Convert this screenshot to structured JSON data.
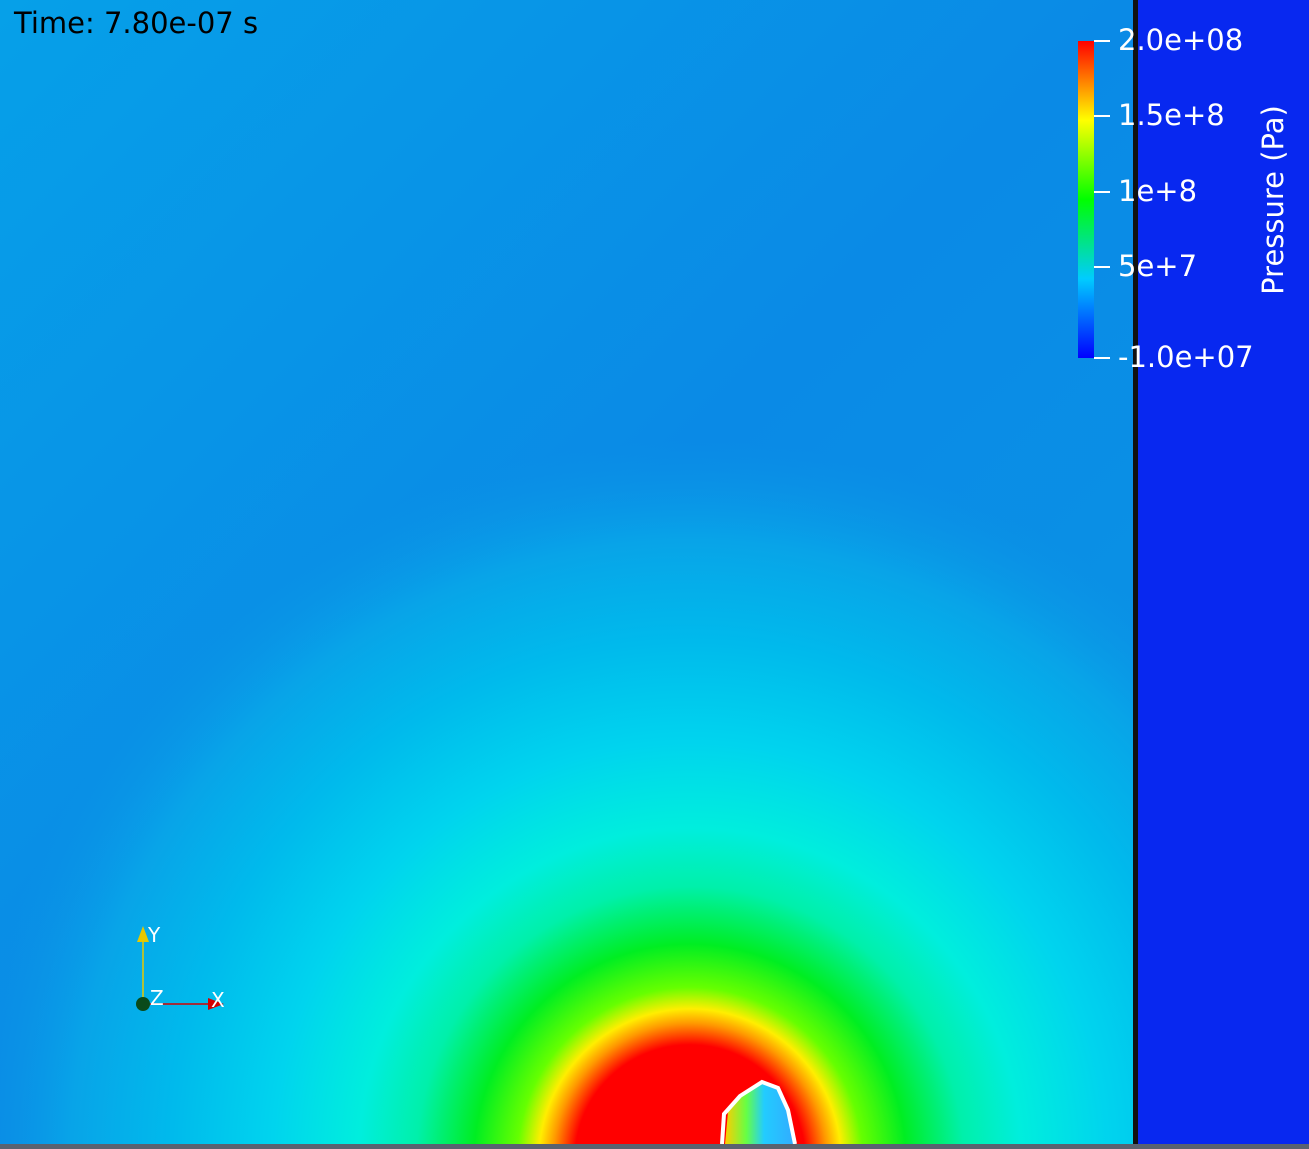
{
  "time_label": "Time: 7.80e-07 s",
  "colorbar": {
    "title": "Pressure (Pa)",
    "ticks": [
      {
        "label": "2.0e+08",
        "value": 200000000
      },
      {
        "label": "1.5e+8",
        "value": 150000000
      },
      {
        "label": "1e+8",
        "value": 100000000
      },
      {
        "label": "5e+7",
        "value": 50000000
      },
      {
        "label": "-1.0e+07",
        "value": -10000000
      }
    ],
    "range": [
      -10000000,
      200000000
    ],
    "colormap": [
      "#0000ff",
      "#00ccff",
      "#00ff00",
      "#ffff00",
      "#ff0000"
    ]
  },
  "axes": {
    "x_label": "X",
    "y_label": "Y",
    "z_label": "Z",
    "x_color": "#d40000",
    "y_color": "#e6c800",
    "z_color": "#0a4a1a"
  },
  "colors": {
    "background_field": "#0a8ae6",
    "right_panel": "#0828f0",
    "divider": "#111111",
    "interface_contour": "#ffffff"
  }
}
